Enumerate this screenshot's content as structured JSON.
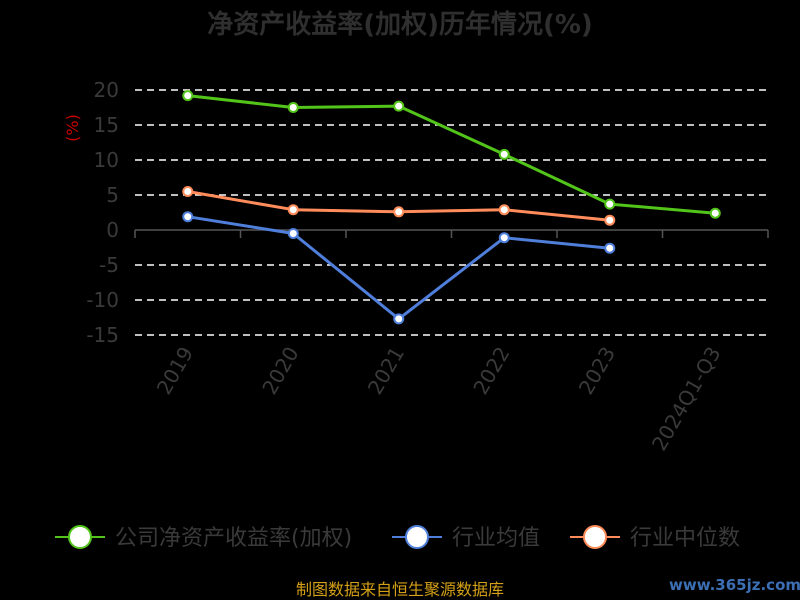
{
  "chart_data": {
    "type": "line",
    "title": "净资产收益率(加权)历年情况(%)",
    "ylabel": "(%)",
    "categories": [
      "2019",
      "2020",
      "2021",
      "2022",
      "2023",
      "2024Q1-Q3"
    ],
    "ylim": [
      -15,
      20
    ],
    "yticks": [
      20,
      15,
      10,
      5,
      0,
      -5,
      -10,
      -15
    ],
    "grid": true,
    "legend_position": "bottom",
    "series": [
      {
        "name": "公司净资产收益率(加权)",
        "color": "#52c41a",
        "values": [
          19.2,
          17.5,
          17.7,
          10.8,
          3.7,
          2.4
        ]
      },
      {
        "name": "行业均值",
        "color": "#4f7fdb",
        "values": [
          1.9,
          -0.5,
          -12.7,
          -1.1,
          -2.6,
          null
        ]
      },
      {
        "name": "行业中位数",
        "color": "#ff8c5a",
        "values": [
          5.5,
          2.9,
          2.6,
          2.9,
          1.4,
          null
        ]
      }
    ]
  },
  "source_note": "制图数据来自恒生聚源数据库",
  "watermark": "www.365jz.com"
}
